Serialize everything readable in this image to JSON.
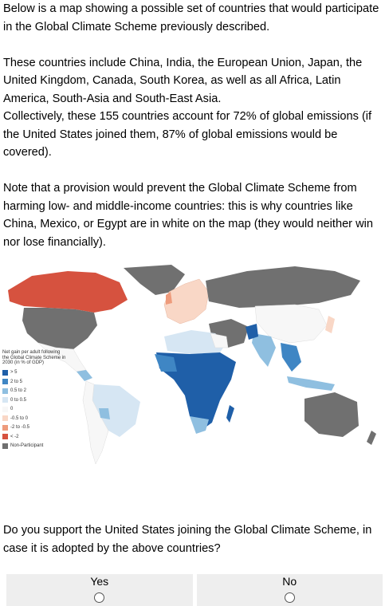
{
  "intro": {
    "p1": "Below is a map showing a possible set of countries that would participate in the Global Climate Scheme previously described.",
    "p2": "These countries include China, India, the European Union, Japan, the United Kingdom, Canada, South Korea, as well as all Africa, Latin America, South-Asia and South-East Asia.",
    "p3": "Collectively, these 155 countries account for 72% of global emissions (if the United States joined them, 87% of global emissions would be covered).",
    "p4": "Note that a provision would prevent the Global Climate Scheme from harming low- and middle-income countries: this is why countries like China, Mexico, or Egypt are in white on the map (they would neither win nor lose financially)."
  },
  "legend": {
    "title": "Net gain per adult following the Global Climate Scheme in 2030 (in % of GDP)",
    "items": [
      {
        "label": "> 5",
        "color": "#1f5fa8"
      },
      {
        "label": "2 to 5",
        "color": "#3f86c4"
      },
      {
        "label": "0.5 to 2",
        "color": "#8fbfe0"
      },
      {
        "label": "0 to 0.5",
        "color": "#d6e6f3"
      },
      {
        "label": "0",
        "color": "#f7f7f7"
      },
      {
        "label": "-0.5 to 0",
        "color": "#f9d7c6"
      },
      {
        "label": "-2 to -0.5",
        "color": "#ee9b7c"
      },
      {
        "label": "< -2",
        "color": "#d6523f"
      },
      {
        "label": "Non-Participant",
        "color": "#707070"
      }
    ]
  },
  "question": "Do you support the United States joining the Global Climate Scheme, in case it is adopted by the above countries?",
  "answers": {
    "yes": "Yes",
    "no": "No"
  }
}
